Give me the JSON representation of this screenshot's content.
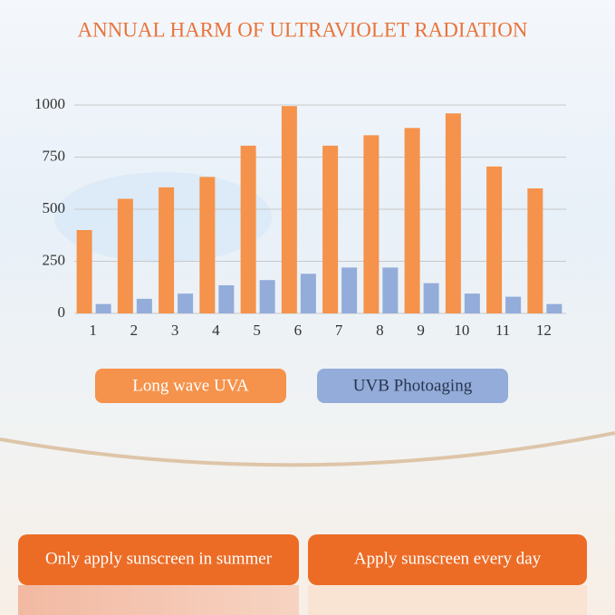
{
  "chart_data": {
    "type": "bar",
    "title": "ANNUAL HARM OF ULTRAVIOLET RADIATION",
    "categories": [
      "1",
      "2",
      "3",
      "4",
      "5",
      "6",
      "7",
      "8",
      "9",
      "10",
      "11",
      "12"
    ],
    "series": [
      {
        "name": "Long wave UVA",
        "color": "#f5924b",
        "values": [
          400,
          550,
          605,
          655,
          805,
          995,
          805,
          855,
          890,
          960,
          705,
          600
        ]
      },
      {
        "name": "UVB Photoaging",
        "color": "#93acd9",
        "values": [
          45,
          70,
          95,
          135,
          160,
          190,
          220,
          220,
          145,
          95,
          80,
          45
        ]
      }
    ],
    "ylim": [
      0,
      1000
    ],
    "yticks": [
      0,
      250,
      500,
      750,
      1000
    ],
    "grid": true
  },
  "panels": [
    "Only apply sunscreen in summer",
    "Apply sunscreen every day"
  ]
}
